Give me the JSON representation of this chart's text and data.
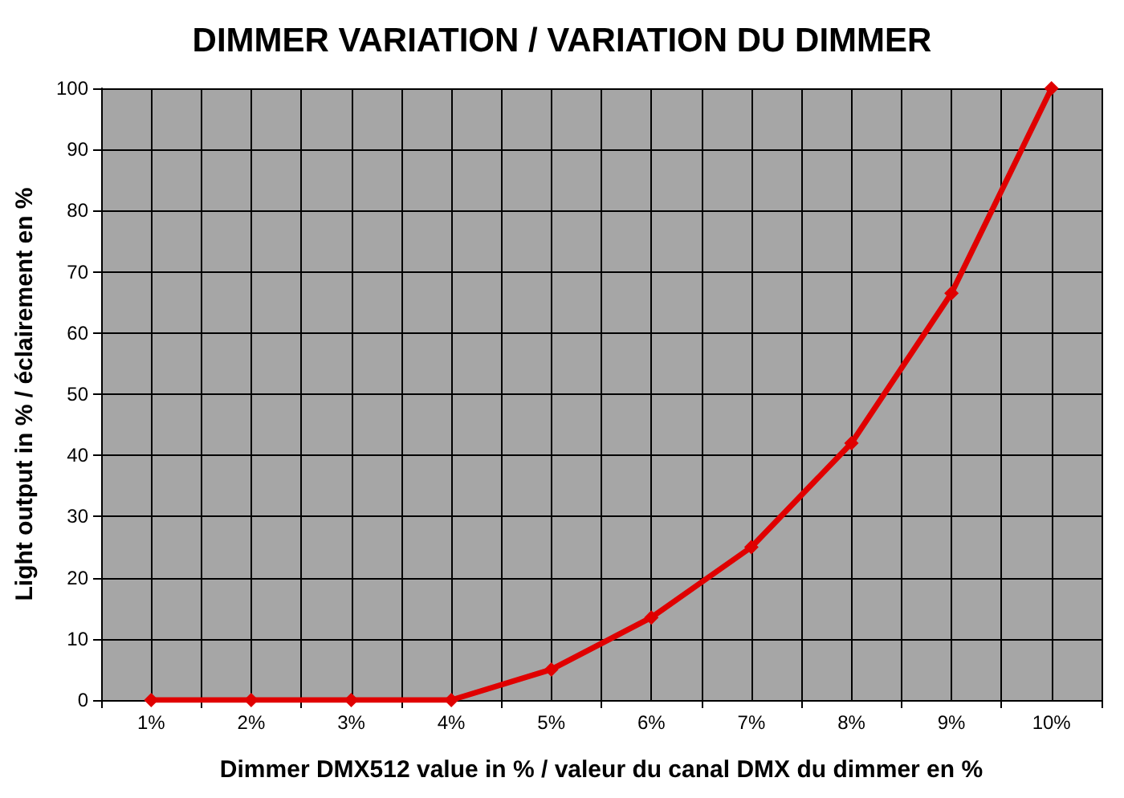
{
  "chart_data": {
    "type": "line",
    "title": "DIMMER VARIATION / VARIATION DU DIMMER",
    "xlabel": "Dimmer DMX512 value in % / valeur du canal DMX du dimmer en %",
    "ylabel": "Light output in % / éclairement en %",
    "categories": [
      "1%",
      "2%",
      "3%",
      "4%",
      "5%",
      "6%",
      "7%",
      "8%",
      "9%",
      "10%"
    ],
    "series": [
      {
        "color": "#e00000",
        "values": [
          0,
          0,
          0,
          0,
          5,
          13.5,
          25,
          42,
          66.5,
          100
        ]
      }
    ],
    "ylim": [
      0,
      100
    ],
    "yticks": [
      0,
      10,
      20,
      30,
      40,
      50,
      60,
      70,
      80,
      90,
      100
    ],
    "grid": true,
    "marker": "diamond",
    "line_style": "solid"
  }
}
